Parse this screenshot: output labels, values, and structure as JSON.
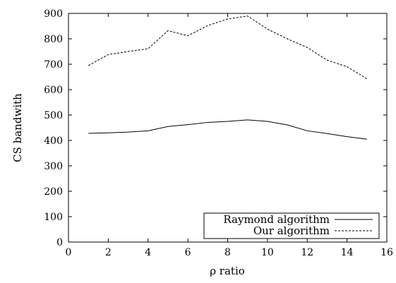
{
  "chart_data": {
    "type": "line",
    "xlabel": "ρ ratio",
    "ylabel": "CS bandwith",
    "xlim": [
      0,
      16
    ],
    "ylim": [
      0,
      900
    ],
    "xticks": [
      0,
      2,
      4,
      6,
      8,
      10,
      12,
      14,
      16
    ],
    "yticks": [
      0,
      100,
      200,
      300,
      400,
      500,
      600,
      700,
      800,
      900
    ],
    "grid": false,
    "legend": "bottom-right",
    "x": [
      1,
      2,
      3,
      4,
      5,
      6,
      7,
      8,
      9,
      10,
      11,
      12,
      13,
      14,
      15
    ],
    "series": [
      {
        "name": "Raymond algorithm",
        "style": "solid",
        "color": "#000000",
        "values": [
          428,
          430,
          433,
          438,
          455,
          462,
          471,
          475,
          481,
          475,
          461,
          438,
          427,
          415,
          405
        ]
      },
      {
        "name": "Our algorithm",
        "style": "dashed",
        "color": "#000000",
        "values": [
          695,
          738,
          750,
          761,
          832,
          812,
          852,
          878,
          890,
          838,
          800,
          766,
          716,
          690,
          643
        ]
      }
    ]
  }
}
